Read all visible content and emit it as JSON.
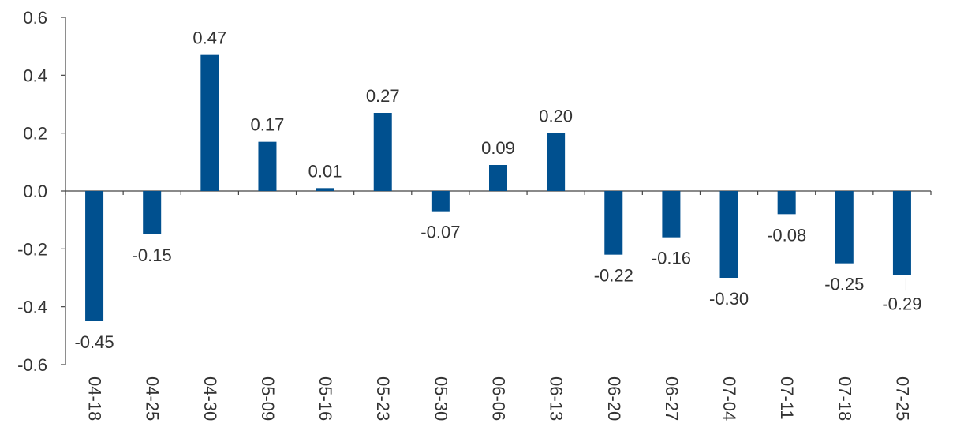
{
  "chart_data": {
    "type": "bar",
    "title": "",
    "xlabel": "",
    "ylabel": "",
    "ylim": [
      -0.6,
      0.6
    ],
    "yticks": [
      0.6,
      0.4,
      0.2,
      0.0,
      -0.2,
      -0.4,
      -0.6
    ],
    "ytick_labels": [
      "0.6",
      "0.4",
      "0.2",
      "0.0",
      "-0.2",
      "-0.4",
      "-0.6"
    ],
    "grid": false,
    "legend": "none",
    "bar_color": "#00508f",
    "categories": [
      "04-18",
      "04-25",
      "04-30",
      "05-09",
      "05-16",
      "05-23",
      "05-30",
      "06-06",
      "06-13",
      "06-20",
      "06-27",
      "07-04",
      "07-11",
      "07-18",
      "07-25"
    ],
    "values": [
      -0.45,
      -0.15,
      0.47,
      0.17,
      0.01,
      0.27,
      -0.07,
      0.09,
      0.2,
      -0.22,
      -0.16,
      -0.3,
      -0.08,
      -0.25,
      -0.29
    ],
    "data_labels": [
      "-0.45",
      "-0.15",
      "0.47",
      "0.17",
      "0.01",
      "0.27",
      "-0.07",
      "0.09",
      "0.20",
      "-0.22",
      "-0.16",
      "-0.30",
      "-0.08",
      "-0.25",
      "-0.29"
    ]
  }
}
